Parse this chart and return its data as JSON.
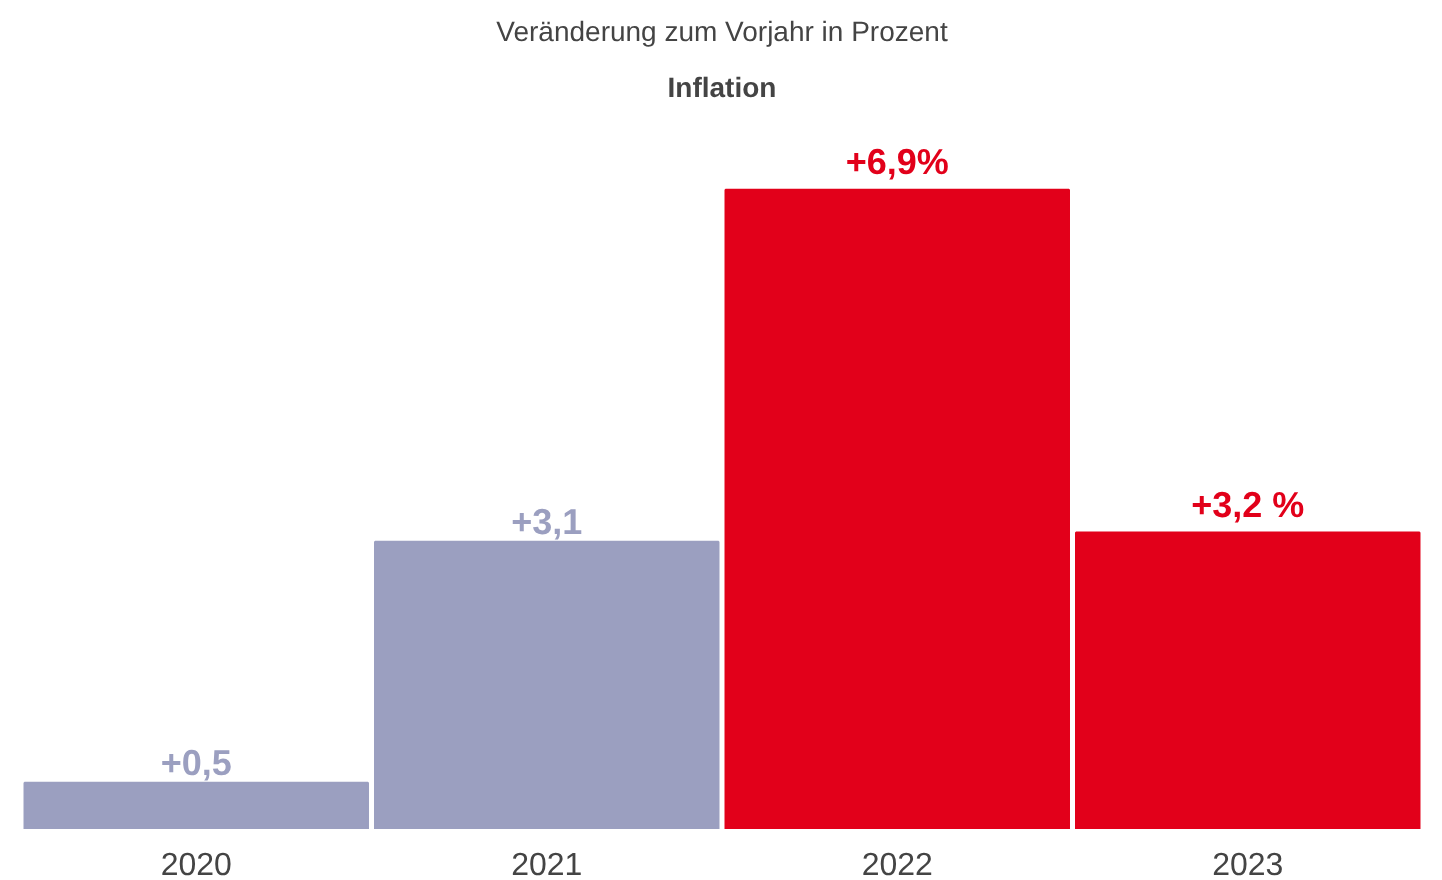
{
  "chart_data": {
    "type": "bar",
    "title": "Inflation",
    "subtitle": "Veränderung zum Vorjahr in Prozent",
    "categories": [
      "2020",
      "2021",
      "2022",
      "2023"
    ],
    "values": [
      0.5,
      3.1,
      6.9,
      3.2
    ],
    "colors": [
      "#9b9fc0",
      "#9b9fc0",
      "#e2001a",
      "#e2001a"
    ],
    "value_labels": [
      "+0,5",
      "+3,1",
      "+6,9%",
      "+3,2 %"
    ],
    "grid": false
  }
}
